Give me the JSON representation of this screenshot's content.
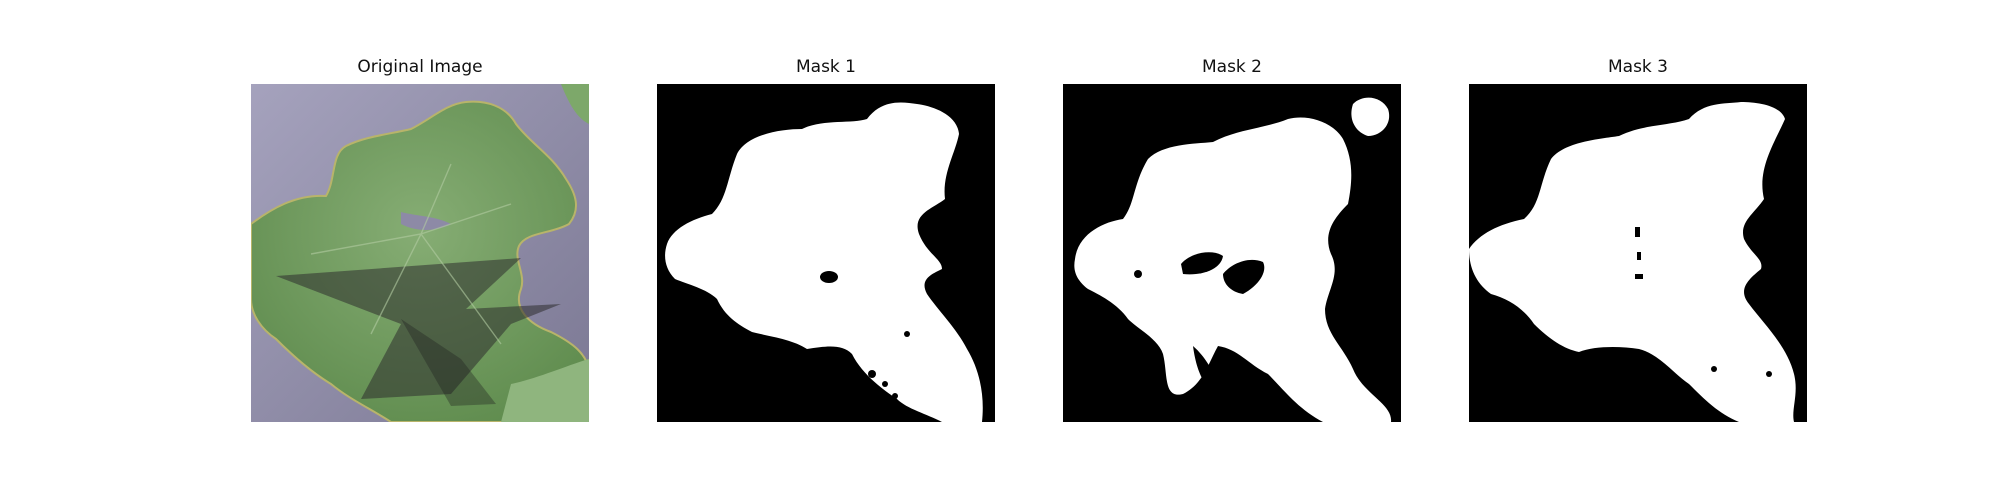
{
  "figure": {
    "panels": [
      {
        "title": "Original Image",
        "kind": "photo"
      },
      {
        "title": "Mask 1",
        "kind": "mask"
      },
      {
        "title": "Mask 2",
        "kind": "mask"
      },
      {
        "title": "Mask 3",
        "kind": "mask"
      }
    ]
  },
  "colors": {
    "background": "#ffffff",
    "mask_fg": "#ffffff",
    "mask_bg": "#000000",
    "photo_bg": "#8f8ca8",
    "leaf": "#6f9a5c",
    "shadow": "#333333"
  }
}
